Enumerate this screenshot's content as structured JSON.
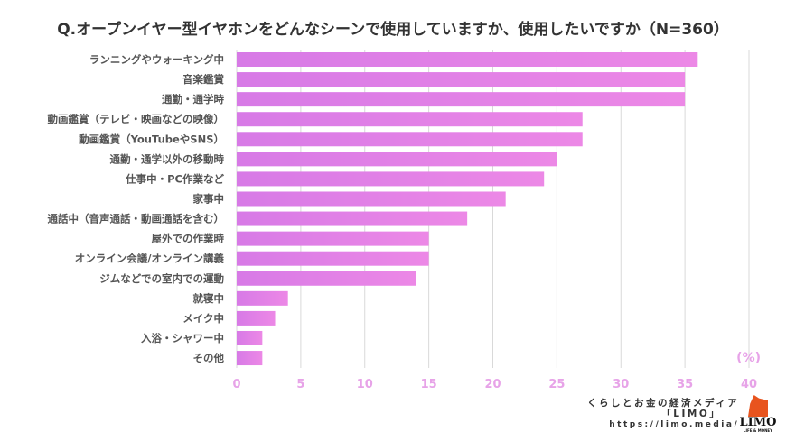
{
  "chart_data": {
    "type": "bar",
    "orientation": "horizontal",
    "title": "Q.オープンイヤー型イヤホンをどんなシーンで使用していますか、使用したいですか（N=360）",
    "categories": [
      "ランニングやウォーキング中",
      "音楽鑑賞",
      "通勤・通学時",
      "動画鑑賞（テレビ・映画などの映像）",
      "動画鑑賞（YouTubeやSNS）",
      "通勤・通学以外の移動時",
      "仕事中・PC作業など",
      "家事中",
      "通話中（音声通話・動画通話を含む）",
      "屋外での作業時",
      "オンライン会議/オンライン講義",
      "ジムなどでの室内での運動",
      "就寝中",
      "メイク中",
      "入浴・シャワー中",
      "その他"
    ],
    "values": [
      36,
      35,
      35,
      27,
      27,
      25,
      24,
      21,
      18,
      15,
      15,
      14,
      4,
      3,
      2,
      2
    ],
    "xlabel": "(%)",
    "xlim": [
      0,
      40
    ],
    "ticks": [
      "0",
      "5",
      "10",
      "15",
      "20",
      "25",
      "30",
      "35",
      "40"
    ],
    "grid": true,
    "bar_color": "#e27de6"
  },
  "footer": {
    "brand_line1": "くらしとお金の経済メディア",
    "brand_line2": "「LIMO」",
    "url": "https://limo.media/",
    "logo_name": "LIMO",
    "logo_sub": "LIFE & MONEY"
  }
}
